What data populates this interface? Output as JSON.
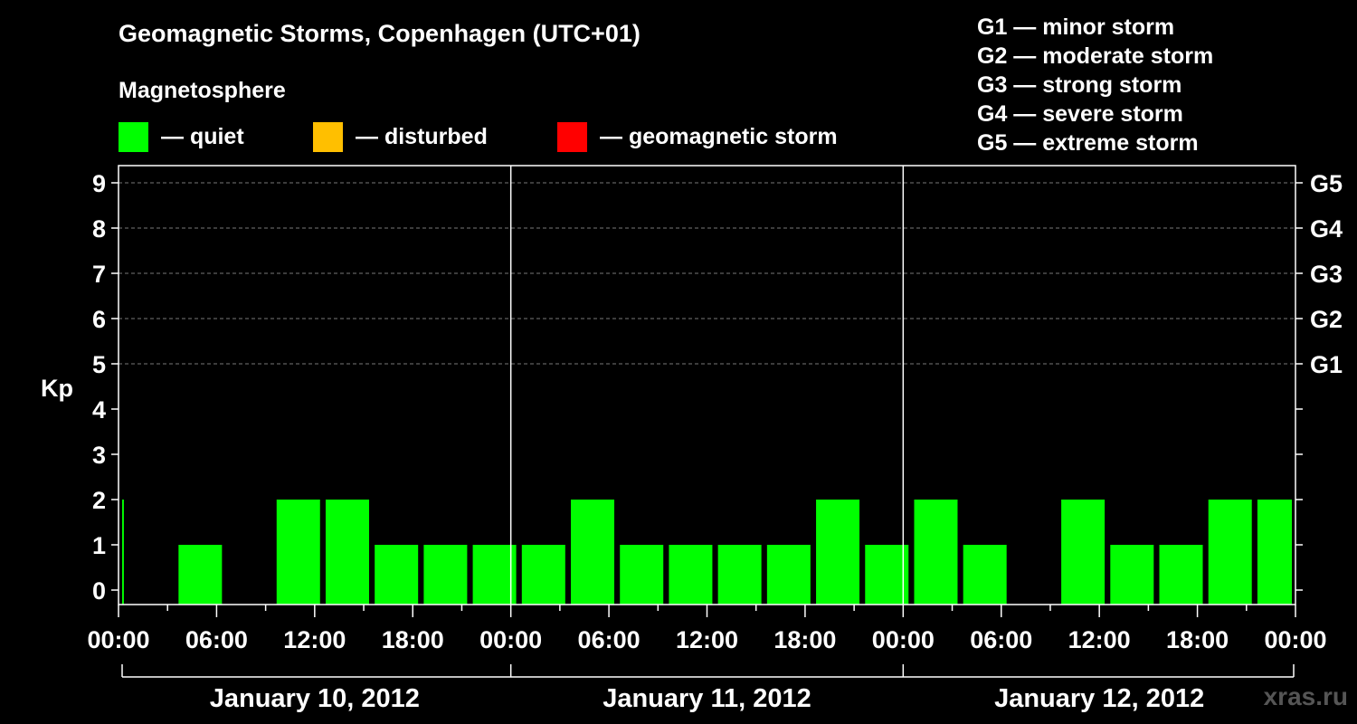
{
  "header": {
    "title": "Geomagnetic Storms, Copenhagen (UTC+01)",
    "magnetosphere_label": "Magnetosphere"
  },
  "legend": [
    {
      "color": "#00ff00",
      "label": "— quiet"
    },
    {
      "color": "#ffbf00",
      "label": "— disturbed"
    },
    {
      "color": "#ff0000",
      "label": "— geomagnetic storm"
    }
  ],
  "storm_levels": [
    "G1 — minor storm",
    "G2 — moderate storm",
    "G3 — strong storm",
    "G4 — severe storm",
    "G5 — extreme storm"
  ],
  "watermark": "xras.ru",
  "chart_data": {
    "type": "bar",
    "ylabel": "Kp",
    "ylim": [
      0,
      9
    ],
    "y_ticks": [
      0,
      1,
      2,
      3,
      4,
      5,
      6,
      7,
      8,
      9
    ],
    "right_axis_labels": [
      {
        "y": 5,
        "label": "G1"
      },
      {
        "y": 6,
        "label": "G2"
      },
      {
        "y": 7,
        "label": "G3"
      },
      {
        "y": 8,
        "label": "G4"
      },
      {
        "y": 9,
        "label": "G5"
      }
    ],
    "x_tick_labels": [
      "00:00",
      "06:00",
      "12:00",
      "18:00",
      "00:00",
      "06:00",
      "12:00",
      "18:00",
      "00:00",
      "06:00",
      "12:00",
      "18:00",
      "00:00"
    ],
    "days": [
      "January 10, 2012",
      "January 11, 2012",
      "January 12, 2012"
    ],
    "grid": "horizontal dashed",
    "legend_placement": "top",
    "bar_color": "#00ff00",
    "series": [
      {
        "values": [
          2,
          0,
          1,
          0,
          2,
          2,
          1,
          1,
          1,
          1,
          2,
          1,
          1,
          1,
          1,
          2,
          1,
          2,
          1,
          0,
          2,
          1,
          1,
          2,
          2
        ]
      }
    ]
  }
}
